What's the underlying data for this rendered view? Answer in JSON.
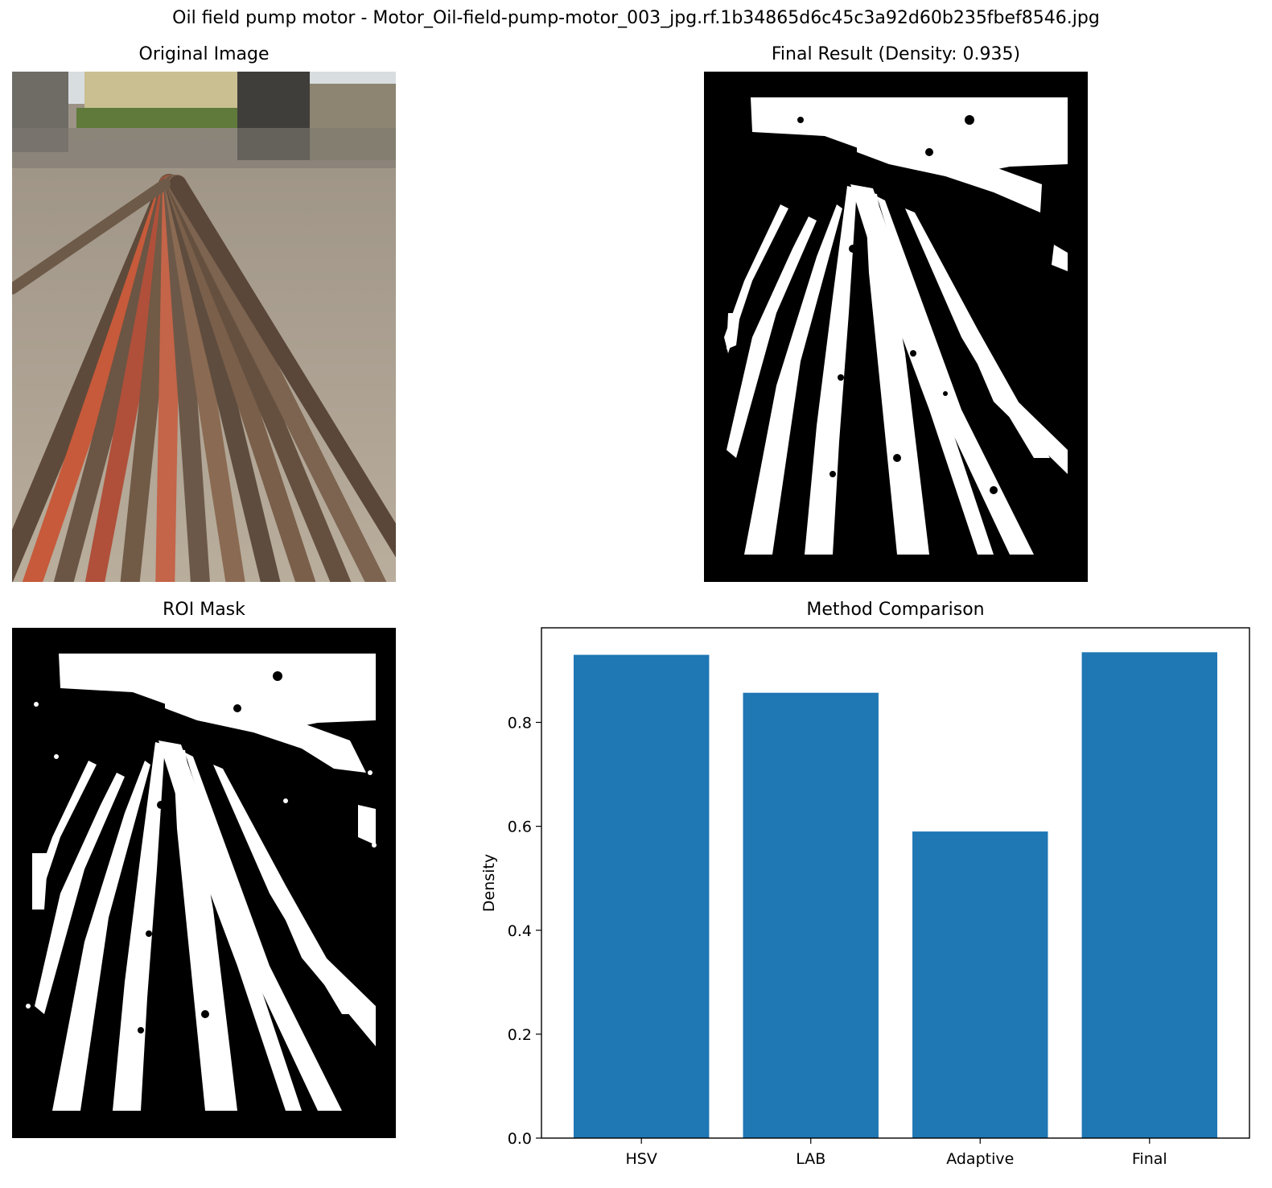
{
  "figure": {
    "title": "Oil field pump motor - Motor_Oil-field-pump-motor_003_jpg.rf.1b34865d6c45c3a92d60b235fbef8546.jpg"
  },
  "panels": {
    "original": {
      "title": "Original Image"
    },
    "final": {
      "title": "Final Result (Density: 0.935)"
    },
    "roi": {
      "title": "ROI Mask"
    },
    "comparison": {
      "title": "Method Comparison"
    }
  },
  "colors": {
    "bar": "#1f77b4",
    "mask_bg": "#000000",
    "mask_fg": "#ffffff"
  },
  "chart_data": {
    "type": "bar",
    "title": "Method Comparison",
    "xlabel": "",
    "ylabel": "Density",
    "categories": [
      "HSV",
      "LAB",
      "Adaptive",
      "Final"
    ],
    "values": [
      0.93,
      0.857,
      0.59,
      0.935
    ],
    "ylim": [
      0,
      0.982
    ],
    "yticks": [
      "0.0",
      "0.2",
      "0.4",
      "0.6",
      "0.8"
    ],
    "grid": false,
    "legend": "none"
  }
}
